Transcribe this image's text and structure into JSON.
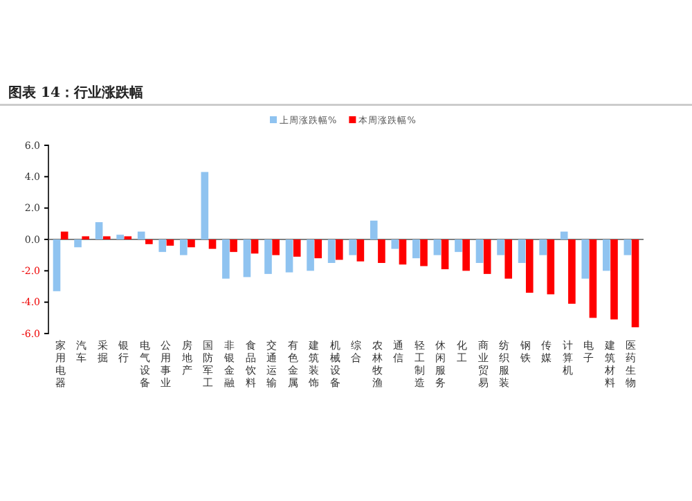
{
  "chart_data": {
    "type": "bar",
    "title": "图表 14：行业涨跌幅",
    "categories": [
      "家用电器",
      "汽车",
      "采掘",
      "银行",
      "电气设备",
      "公用事业",
      "房地产",
      "国防军工",
      "非银金融",
      "食品饮料",
      "交通运输",
      "有色金属",
      "建筑装饰",
      "机械设备",
      "综合",
      "农林牧渔",
      "通信",
      "轻工制造",
      "休闲服务",
      "化工",
      "商业贸易",
      "纺织服装",
      "钢铁",
      "传媒",
      "计算机",
      "电子",
      "建筑材料",
      "医药生物"
    ],
    "series": [
      {
        "name": "上周涨跌幅%",
        "color": "#8fc3f0",
        "values": [
          -3.3,
          -0.5,
          1.1,
          0.3,
          0.5,
          -0.8,
          -1.0,
          4.3,
          -2.5,
          -2.4,
          -2.2,
          -2.1,
          -2.0,
          -1.5,
          -1.0,
          1.2,
          -0.6,
          -1.2,
          -1.0,
          -0.8,
          -1.5,
          -1.0,
          -1.5,
          -1.0,
          0.5,
          -2.5,
          -2.0,
          -1.0
        ]
      },
      {
        "name": "本周涨跌幅%",
        "color": "#ff0000",
        "values": [
          0.5,
          0.2,
          0.2,
          0.2,
          -0.3,
          -0.4,
          -0.5,
          -0.6,
          -0.8,
          -0.9,
          -1.0,
          -1.1,
          -1.2,
          -1.3,
          -1.4,
          -1.5,
          -1.6,
          -1.7,
          -1.9,
          -2.0,
          -2.2,
          -2.5,
          -3.4,
          -3.5,
          -4.1,
          -5.0,
          -5.1,
          -5.6
        ]
      }
    ],
    "ylim": [
      -6,
      6
    ],
    "yticks": [
      {
        "value": 6,
        "label": "6.0"
      },
      {
        "value": 4,
        "label": "4.0"
      },
      {
        "value": 2,
        "label": "2.0"
      },
      {
        "value": 0,
        "label": "0.0"
      },
      {
        "value": -2,
        "label": "-2.0"
      },
      {
        "value": -4,
        "label": "-4.0"
      },
      {
        "value": -6,
        "label": "-6.0"
      }
    ],
    "legend": "top"
  }
}
